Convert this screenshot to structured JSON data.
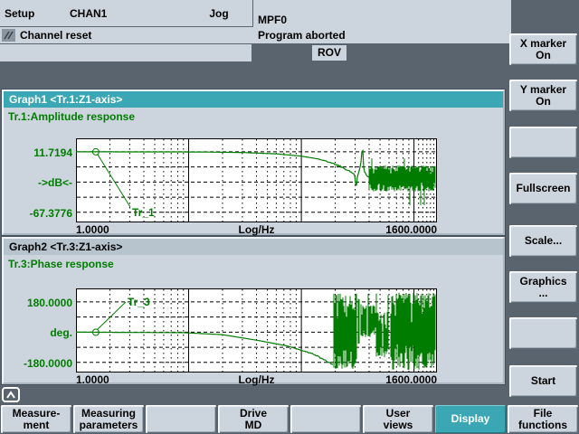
{
  "header": {
    "area": "Setup",
    "channel": "CHAN1",
    "mode": "Jog",
    "program": "MPF0",
    "channel_state": "Channel reset",
    "program_state": "Program aborted",
    "rov": "ROV"
  },
  "graph1": {
    "header": "Graph1 <Tr.1:Z1-axis>"
  },
  "graph2": {
    "header": "Graph2 <Tr.3:Z1-axis>"
  },
  "right_softkeys": [
    {
      "line1": "X marker",
      "line2": "On"
    },
    {
      "line1": "Y marker",
      "line2": "On"
    },
    {
      "line1": "",
      "line2": ""
    },
    {
      "line1": "Fullscreen",
      "line2": ""
    },
    {
      "line1": "Scale...",
      "line2": ""
    },
    {
      "line1": "Graphics",
      "line2": "..."
    },
    {
      "line1": "",
      "line2": ""
    },
    {
      "line1": "Start",
      "line2": ""
    }
  ],
  "bottom_softkeys": [
    {
      "line1": "Measure-",
      "line2": "ment",
      "active": false
    },
    {
      "line1": "Measuring",
      "line2": "parameters",
      "active": false
    },
    {
      "line1": "",
      "line2": "",
      "active": false
    },
    {
      "line1": "Drive",
      "line2": "MD",
      "active": false
    },
    {
      "line1": "",
      "line2": "",
      "active": false
    },
    {
      "line1": "User",
      "line2": "views",
      "active": false
    },
    {
      "line1": "Display",
      "line2": "",
      "active": true
    },
    {
      "line1": "File",
      "line2": "functions",
      "active": false
    }
  ],
  "colors": {
    "accent_teal": "#3ba7b4",
    "trace_green": "#007d00",
    "panel_light": "#ccd5de",
    "background_dark": "#59646e",
    "plot_background": "#ffffff"
  },
  "chart_data": [
    {
      "type": "line",
      "graph": "Graph1",
      "title": "Tr.1:Amplitude response",
      "x_scale": "log",
      "x_range": [
        1,
        1600
      ],
      "xlabel": "Log/Hz",
      "x_tick_labels": [
        "1.0000",
        "1600.0000"
      ],
      "y_tick_labels": [
        "11.7194",
        "->dB<-",
        "-67.3776"
      ],
      "y_top_value": 11.7194,
      "y_bottom_value": -67.3776,
      "grid": "dashed",
      "series": [
        {
          "name": "Tr_1",
          "marker_f": 1.5,
          "points": [
            [
              1,
              11.7
            ],
            [
              12,
              11.5
            ],
            [
              30,
              10.8
            ],
            [
              60,
              9
            ],
            [
              100,
              6
            ],
            [
              140,
              2.5
            ],
            [
              180,
              -2
            ],
            [
              220,
              -7
            ],
            [
              260,
              -12
            ],
            [
              290,
              -17
            ],
            [
              300,
              -22
            ],
            [
              306,
              -38
            ],
            [
              312,
              -22
            ],
            [
              325,
              -13
            ],
            [
              338,
              -2
            ],
            [
              345,
              13
            ],
            [
              349,
              28
            ],
            [
              353,
              4
            ],
            [
              358,
              -8
            ],
            [
              368,
              -16
            ],
            [
              382,
              -20
            ],
            [
              400,
              -22
            ]
          ],
          "jitter": {
            "from_f": 120,
            "amp": 2.2
          },
          "noise_segments": [
            {
              "f0": 400,
              "f1": 1600,
              "hi": -6,
              "lo": -40,
              "density": 1,
              "spike_p": 0.07,
              "spike_hi": 3,
              "spike_lo": -58
            }
          ]
        }
      ]
    },
    {
      "type": "line",
      "graph": "Graph2",
      "title": "Tr.3:Phase response",
      "x_scale": "log",
      "x_range": [
        1,
        1600
      ],
      "xlabel": "Log/Hz",
      "x_tick_labels": [
        "1.0000",
        "1600.0000"
      ],
      "y_tick_labels": [
        "180.0000",
        "deg.",
        "-180.0000"
      ],
      "y_top_value": 180,
      "y_bottom_value": -180,
      "grid": "dashed",
      "series": [
        {
          "name": "Tr_3",
          "marker_f": 1.5,
          "points": [
            [
              1,
              0
            ],
            [
              9,
              -3
            ],
            [
              20,
              -15
            ],
            [
              42,
              -50
            ],
            [
              75,
              -82
            ],
            [
              130,
              -131
            ],
            [
              167,
              -174
            ],
            [
              190,
              -192
            ]
          ],
          "jitter": {
            "from_f": 90,
            "amp": 8
          },
          "noise_segments": [
            {
              "f0": 195,
              "f1": 310,
              "hi": 230,
              "lo": -220,
              "density": 1,
              "spike_p": 0
            },
            {
              "f0": 310,
              "f1": 345,
              "hi": 200,
              "lo": -80,
              "density": 0.35,
              "spike_p": 0
            },
            {
              "f0": 345,
              "f1": 460,
              "hi": 160,
              "lo": -30,
              "density": 0.9,
              "spike_p": 0.1,
              "spike_hi": 230,
              "spike_lo": -200
            },
            {
              "f0": 460,
              "f1": 640,
              "hi": 120,
              "lo": -150,
              "density": 0.85,
              "spike_p": 0.08,
              "spike_hi": 220,
              "spike_lo": -210
            },
            {
              "f0": 640,
              "f1": 1600,
              "hi": 235,
              "lo": -225,
              "density": 1,
              "spike_p": 0
            }
          ]
        }
      ]
    }
  ]
}
